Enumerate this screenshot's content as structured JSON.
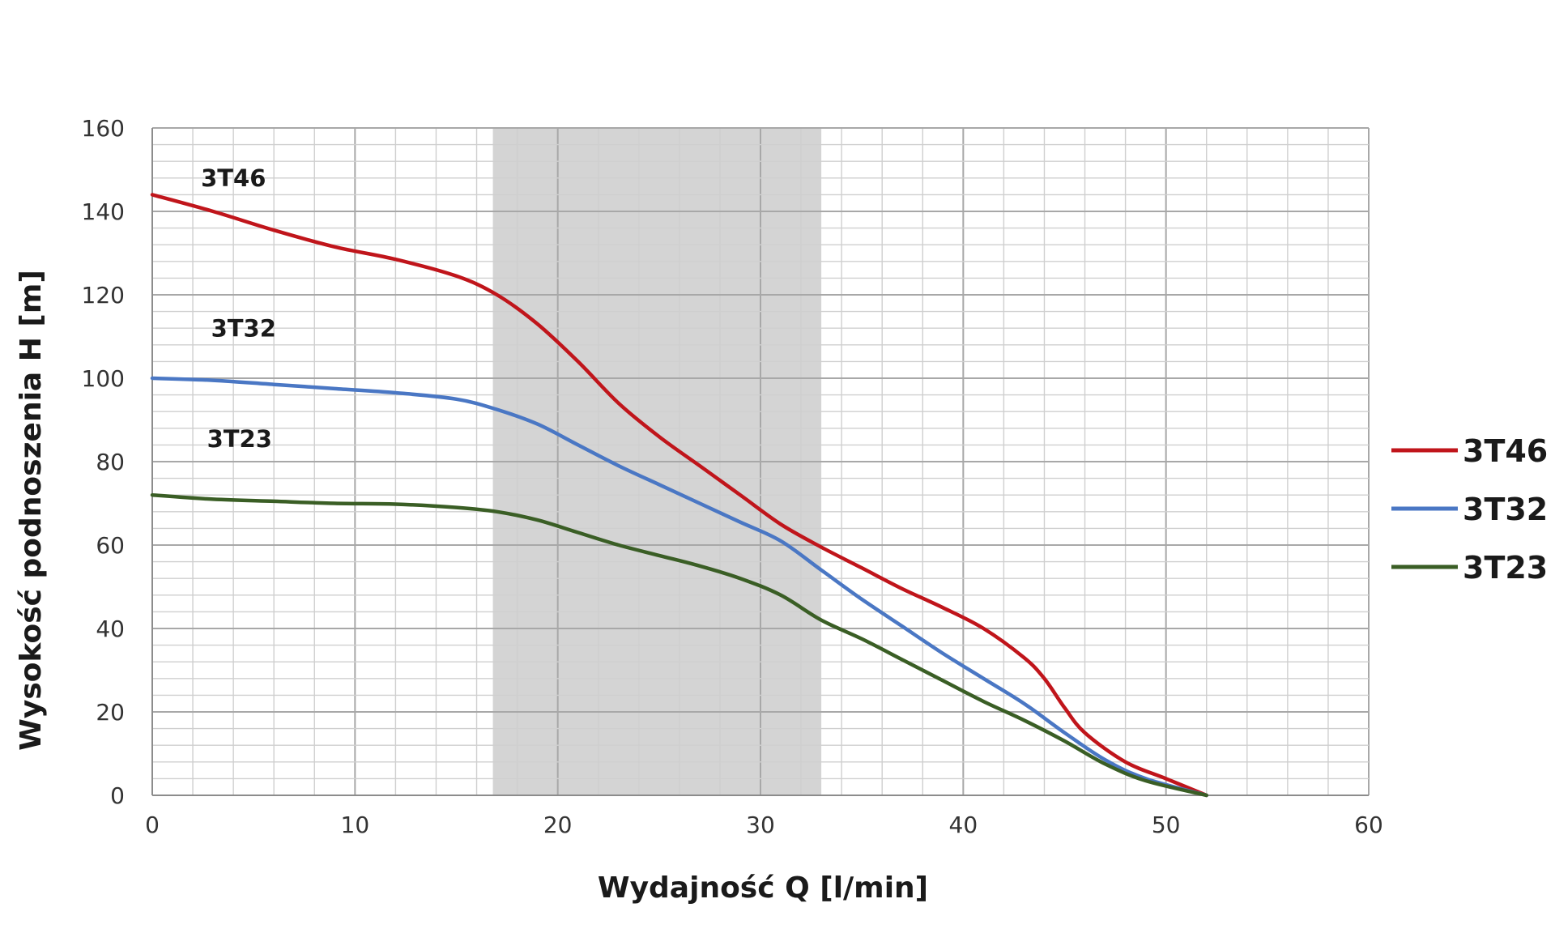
{
  "chart_data": {
    "type": "line",
    "xlabel": "Wydajność Q [l/min]",
    "ylabel": "Wysokość podnoszenia H [m]",
    "xlim": [
      0,
      60
    ],
    "ylim": [
      0,
      160
    ],
    "x_ticks": [
      "0",
      "10",
      "20",
      "30",
      "40",
      "50",
      "60"
    ],
    "y_ticks": [
      "0",
      "20",
      "40",
      "60",
      "80",
      "100",
      "120",
      "140",
      "160"
    ],
    "grid": true,
    "legend_position": "right",
    "shaded_region": {
      "x_from": 16.8,
      "x_to": 33,
      "color": "#d4d4d4"
    },
    "series": [
      {
        "name": "3T46",
        "color": "#c0151b",
        "label_at": [
          2.4,
          146
        ],
        "points": [
          [
            0,
            144
          ],
          [
            3,
            140
          ],
          [
            6,
            135.5
          ],
          [
            9,
            131.5
          ],
          [
            12,
            128.5
          ],
          [
            15,
            124.5
          ],
          [
            17,
            120
          ],
          [
            19,
            113
          ],
          [
            21,
            104
          ],
          [
            23,
            94
          ],
          [
            25,
            86
          ],
          [
            27,
            79
          ],
          [
            29,
            72
          ],
          [
            31,
            65
          ],
          [
            33,
            59.5
          ],
          [
            35,
            54.5
          ],
          [
            37,
            49.5
          ],
          [
            39,
            45
          ],
          [
            41,
            40
          ],
          [
            43,
            33
          ],
          [
            44,
            28
          ],
          [
            45,
            21
          ],
          [
            46,
            15
          ],
          [
            48,
            8
          ],
          [
            50,
            4
          ],
          [
            52,
            0
          ]
        ]
      },
      {
        "name": "3T32",
        "color": "#4a77c4",
        "label_at": [
          2.9,
          110
        ],
        "points": [
          [
            0,
            100
          ],
          [
            3,
            99.5
          ],
          [
            6,
            98.5
          ],
          [
            9,
            97.5
          ],
          [
            12,
            96.5
          ],
          [
            15,
            95
          ],
          [
            17,
            92.5
          ],
          [
            19,
            89
          ],
          [
            21,
            84
          ],
          [
            23,
            79
          ],
          [
            25,
            74.5
          ],
          [
            27,
            70
          ],
          [
            29,
            65.5
          ],
          [
            31,
            61
          ],
          [
            33,
            54
          ],
          [
            35,
            47
          ],
          [
            37,
            40.5
          ],
          [
            39,
            34
          ],
          [
            41,
            28
          ],
          [
            43,
            22
          ],
          [
            45,
            15
          ],
          [
            47,
            8.5
          ],
          [
            49,
            4
          ],
          [
            52,
            0
          ]
        ]
      },
      {
        "name": "3T23",
        "color": "#3a5e25",
        "label_at": [
          2.7,
          83.5
        ],
        "points": [
          [
            0,
            72
          ],
          [
            3,
            71
          ],
          [
            6,
            70.5
          ],
          [
            9,
            70
          ],
          [
            12,
            69.8
          ],
          [
            15,
            69
          ],
          [
            17,
            68
          ],
          [
            19,
            66
          ],
          [
            21,
            63
          ],
          [
            23,
            60
          ],
          [
            25,
            57.5
          ],
          [
            27,
            55
          ],
          [
            29,
            52
          ],
          [
            31,
            48
          ],
          [
            33,
            42
          ],
          [
            35,
            37.5
          ],
          [
            37,
            32.5
          ],
          [
            39,
            27.5
          ],
          [
            41,
            22.5
          ],
          [
            43,
            18
          ],
          [
            45,
            13
          ],
          [
            47,
            7.5
          ],
          [
            49,
            3.5
          ],
          [
            52,
            0
          ]
        ]
      }
    ]
  }
}
